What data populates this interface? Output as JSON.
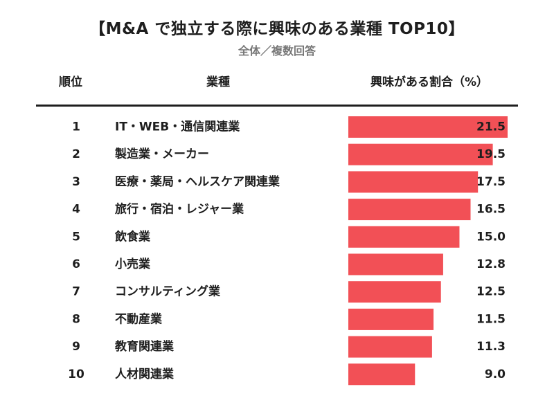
{
  "header": {
    "title": "【M&A で独立する際に興味のある業種 TOP10】",
    "subtitle": "全体／複数回答",
    "col_rank": "順位",
    "col_industry": "業種",
    "col_ratio": "興味がある割合（%）"
  },
  "colors": {
    "bar": "#f25056",
    "text": "#1e1e1e",
    "subtitle": "#777777"
  },
  "chart_data": {
    "type": "bar",
    "orientation": "horizontal",
    "title": "【M&A で独立する際に興味のある業種 TOP10】",
    "subtitle": "全体／複数回答",
    "ranks": [
      "1",
      "2",
      "3",
      "4",
      "5",
      "6",
      "7",
      "8",
      "9",
      "10"
    ],
    "categories": [
      "IT・WEB・通信関連業",
      "製造業・メーカー",
      "医療・薬局・ヘルスケア関連業",
      "旅行・宿泊・レジャー業",
      "飲食業",
      "小売業",
      "コンサルティング業",
      "不動産業",
      "教育関連業",
      "人材関連業"
    ],
    "values": [
      21.5,
      19.5,
      17.5,
      16.5,
      15.0,
      12.8,
      12.5,
      11.5,
      11.3,
      9.0
    ],
    "value_labels": [
      "21.5",
      "19.5",
      "17.5",
      "16.5",
      "15.0",
      "12.8",
      "12.5",
      "11.5",
      "11.3",
      "9.0"
    ],
    "xlim": [
      0,
      21.5
    ],
    "grid": false,
    "legend": "none"
  }
}
